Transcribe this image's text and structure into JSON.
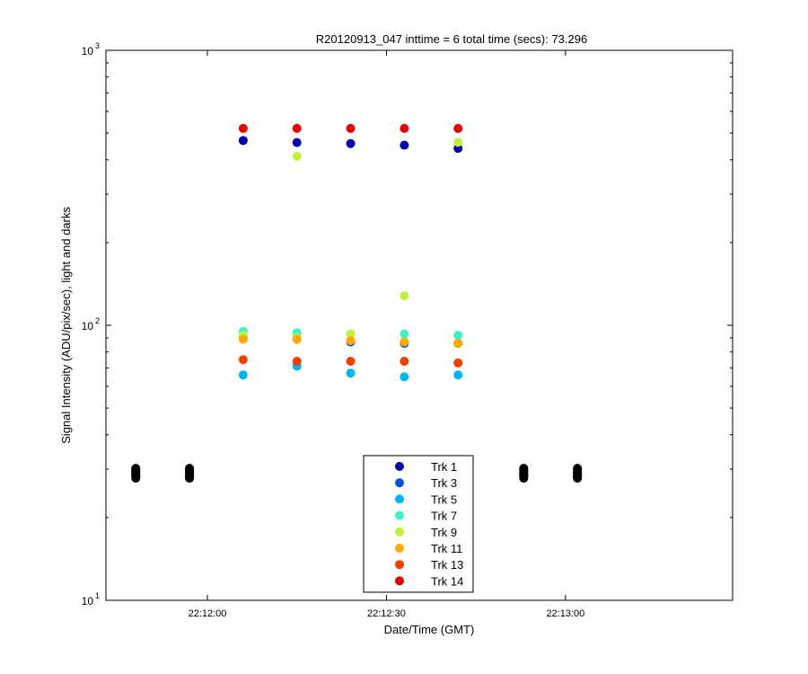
{
  "chart_data": {
    "type": "scatter",
    "title": "R20120913_047 inttime = 6 total time (secs): 73.296",
    "xlabel": "Date/Time (GMT)",
    "ylabel": "Signal Intensity (ADU/pix/sec), light and darks",
    "y_scale": "log",
    "ylim": [
      10,
      1000
    ],
    "y_ticks": [
      {
        "base": "10",
        "exp": "1",
        "value": 10
      },
      {
        "base": "10",
        "exp": "2",
        "value": 100
      },
      {
        "base": "10",
        "exp": "3",
        "value": 1000
      }
    ],
    "xlim": [
      "22:11:43",
      "22:13:28"
    ],
    "x_ticks": [
      "22:12:00",
      "22:12:30",
      "22:13:00"
    ],
    "grid": false,
    "legend_position": "bottom-center",
    "series": [
      {
        "name": "Trk 1",
        "color": "#0000aa",
        "x": [
          "22:12:06",
          "22:12:15",
          "22:12:24",
          "22:12:33",
          "22:12:42"
        ],
        "y": [
          470,
          462,
          458,
          452,
          440
        ]
      },
      {
        "name": "Trk 3",
        "color": "#0050e0",
        "x": [
          "22:12:06",
          "22:12:15",
          "22:12:24",
          "22:12:33",
          "22:12:42"
        ],
        "y": [
          90,
          89,
          87,
          86,
          86
        ]
      },
      {
        "name": "Trk 5",
        "color": "#00b4f0",
        "x": [
          "22:12:06",
          "22:12:15",
          "22:12:24",
          "22:12:33",
          "22:12:42"
        ],
        "y": [
          66,
          71,
          67,
          65,
          66
        ]
      },
      {
        "name": "Trk 7",
        "color": "#40f0c8",
        "x": [
          "22:12:06",
          "22:12:15",
          "22:12:24",
          "22:12:33",
          "22:12:42"
        ],
        "y": [
          95,
          94,
          93,
          93,
          92
        ]
      },
      {
        "name": "Trk 9",
        "color": "#c0f040",
        "x": [
          "22:12:06",
          "22:12:15",
          "22:12:24",
          "22:12:33",
          "22:12:42"
        ],
        "y": [
          92,
          90,
          93,
          128,
          463
        ]
      },
      {
        "name": "Trk 9",
        "color": "#c0f040",
        "x": [
          "22:12:15"
        ],
        "y": [
          412
        ]
      },
      {
        "name": "Trk 11",
        "color": "#ffaa00",
        "x": [
          "22:12:06",
          "22:12:15",
          "22:12:24",
          "22:12:33",
          "22:12:42"
        ],
        "y": [
          89,
          89,
          88,
          87,
          86
        ]
      },
      {
        "name": "Trk 13",
        "color": "#f04000",
        "x": [
          "22:12:06",
          "22:12:15",
          "22:12:24",
          "22:12:33",
          "22:12:42"
        ],
        "y": [
          75,
          74,
          74,
          74,
          73
        ]
      },
      {
        "name": "Trk 14",
        "color": "#e80000",
        "x": [
          "22:12:06",
          "22:12:15",
          "22:12:24",
          "22:12:33",
          "22:12:42"
        ],
        "y": [
          520,
          520,
          520,
          520,
          520
        ]
      },
      {
        "name": "darks",
        "color": "#000000",
        "x": [
          "22:11:48",
          "22:11:57",
          "22:12:53",
          "22:13:02"
        ],
        "y": [
          29,
          29,
          29,
          29
        ],
        "spread": [
          27.8,
          30.2
        ]
      }
    ],
    "legend": [
      "Trk 1",
      "Trk 3",
      "Trk 5",
      "Trk 7",
      "Trk 9",
      "Trk 11",
      "Trk 13",
      "Trk 14"
    ]
  }
}
